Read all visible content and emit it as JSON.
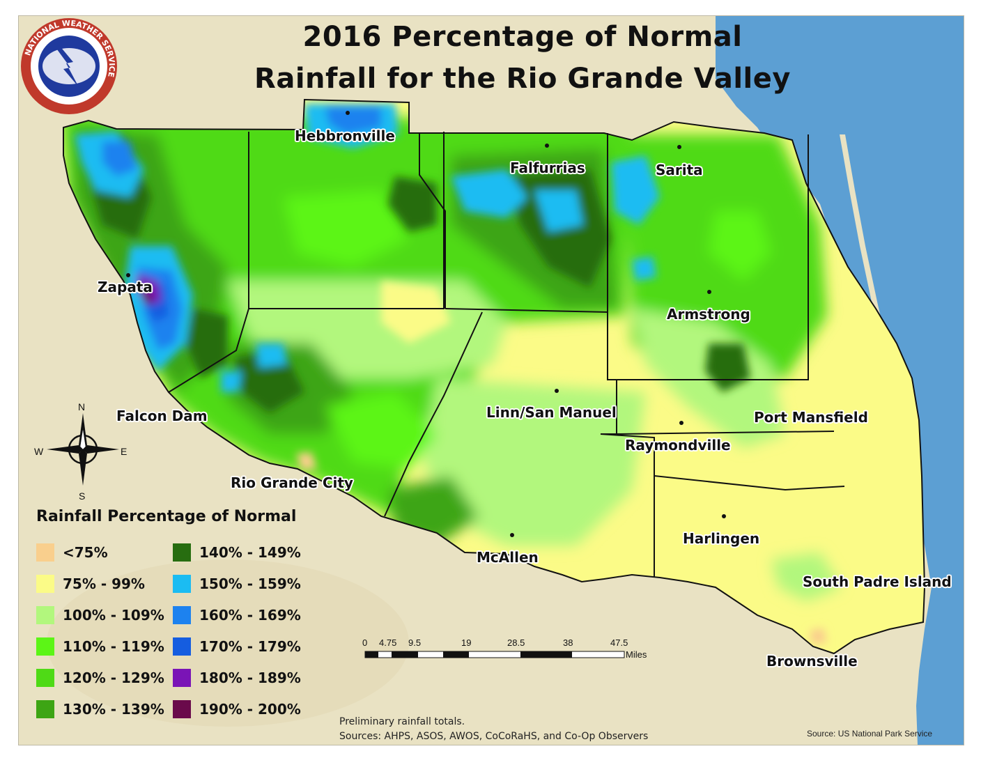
{
  "title": {
    "line1": "2016 Percentage of Normal",
    "line2": "Rainfall for the Rio Grande Valley"
  },
  "logo": {
    "text": "NATIONAL WEATHER SERVICE"
  },
  "cities": [
    {
      "name": "Hebbronville"
    },
    {
      "name": "Falfurrias"
    },
    {
      "name": "Sarita"
    },
    {
      "name": "Zapata"
    },
    {
      "name": "Armstrong"
    },
    {
      "name": "Falcon Dam"
    },
    {
      "name": "Linn/San Manuel"
    },
    {
      "name": "Port Mansfield"
    },
    {
      "name": "Raymondville"
    },
    {
      "name": "Rio Grande City"
    },
    {
      "name": "Harlingen"
    },
    {
      "name": "McAllen"
    },
    {
      "name": "South Padre Island"
    },
    {
      "name": "Brownsville"
    }
  ],
  "compass": {
    "n": "N",
    "s": "S",
    "e": "E",
    "w": "W"
  },
  "legend": {
    "title": "Rainfall Percentage of Normal",
    "items": [
      {
        "label": "<75%",
        "color": "#f9cf8d"
      },
      {
        "label": "75% - 99%",
        "color": "#fbfb87"
      },
      {
        "label": "100% - 109%",
        "color": "#b2f77d"
      },
      {
        "label": "110% - 119%",
        "color": "#5cf516"
      },
      {
        "label": "120% - 129%",
        "color": "#4fda16"
      },
      {
        "label": "130% - 139%",
        "color": "#3da514"
      },
      {
        "label": "140% - 149%",
        "color": "#276d10"
      },
      {
        "label": "150% - 159%",
        "color": "#1bbcf2"
      },
      {
        "label": "160% - 169%",
        "color": "#1d82ef"
      },
      {
        "label": "170% - 179%",
        "color": "#155de0"
      },
      {
        "label": "180% - 189%",
        "color": "#7a14b6"
      },
      {
        "label": "190% - 200%",
        "color": "#6a0a4b"
      }
    ]
  },
  "scale_bar": {
    "ticks": [
      "0",
      "4.75",
      "9.5",
      "19",
      "28.5",
      "38",
      "47.5"
    ],
    "unit": "Miles"
  },
  "notes": {
    "line1": "Preliminary rainfall totals.",
    "line2": "Sources: AHPS, ASOS, AWOS, CoCoRaHS, and Co-Op Observers"
  },
  "source_credit": "Source: US National Park Service",
  "colors": {
    "land": "#e9e2c3",
    "water": "#5c9fd3",
    "boundary": "#111111"
  }
}
